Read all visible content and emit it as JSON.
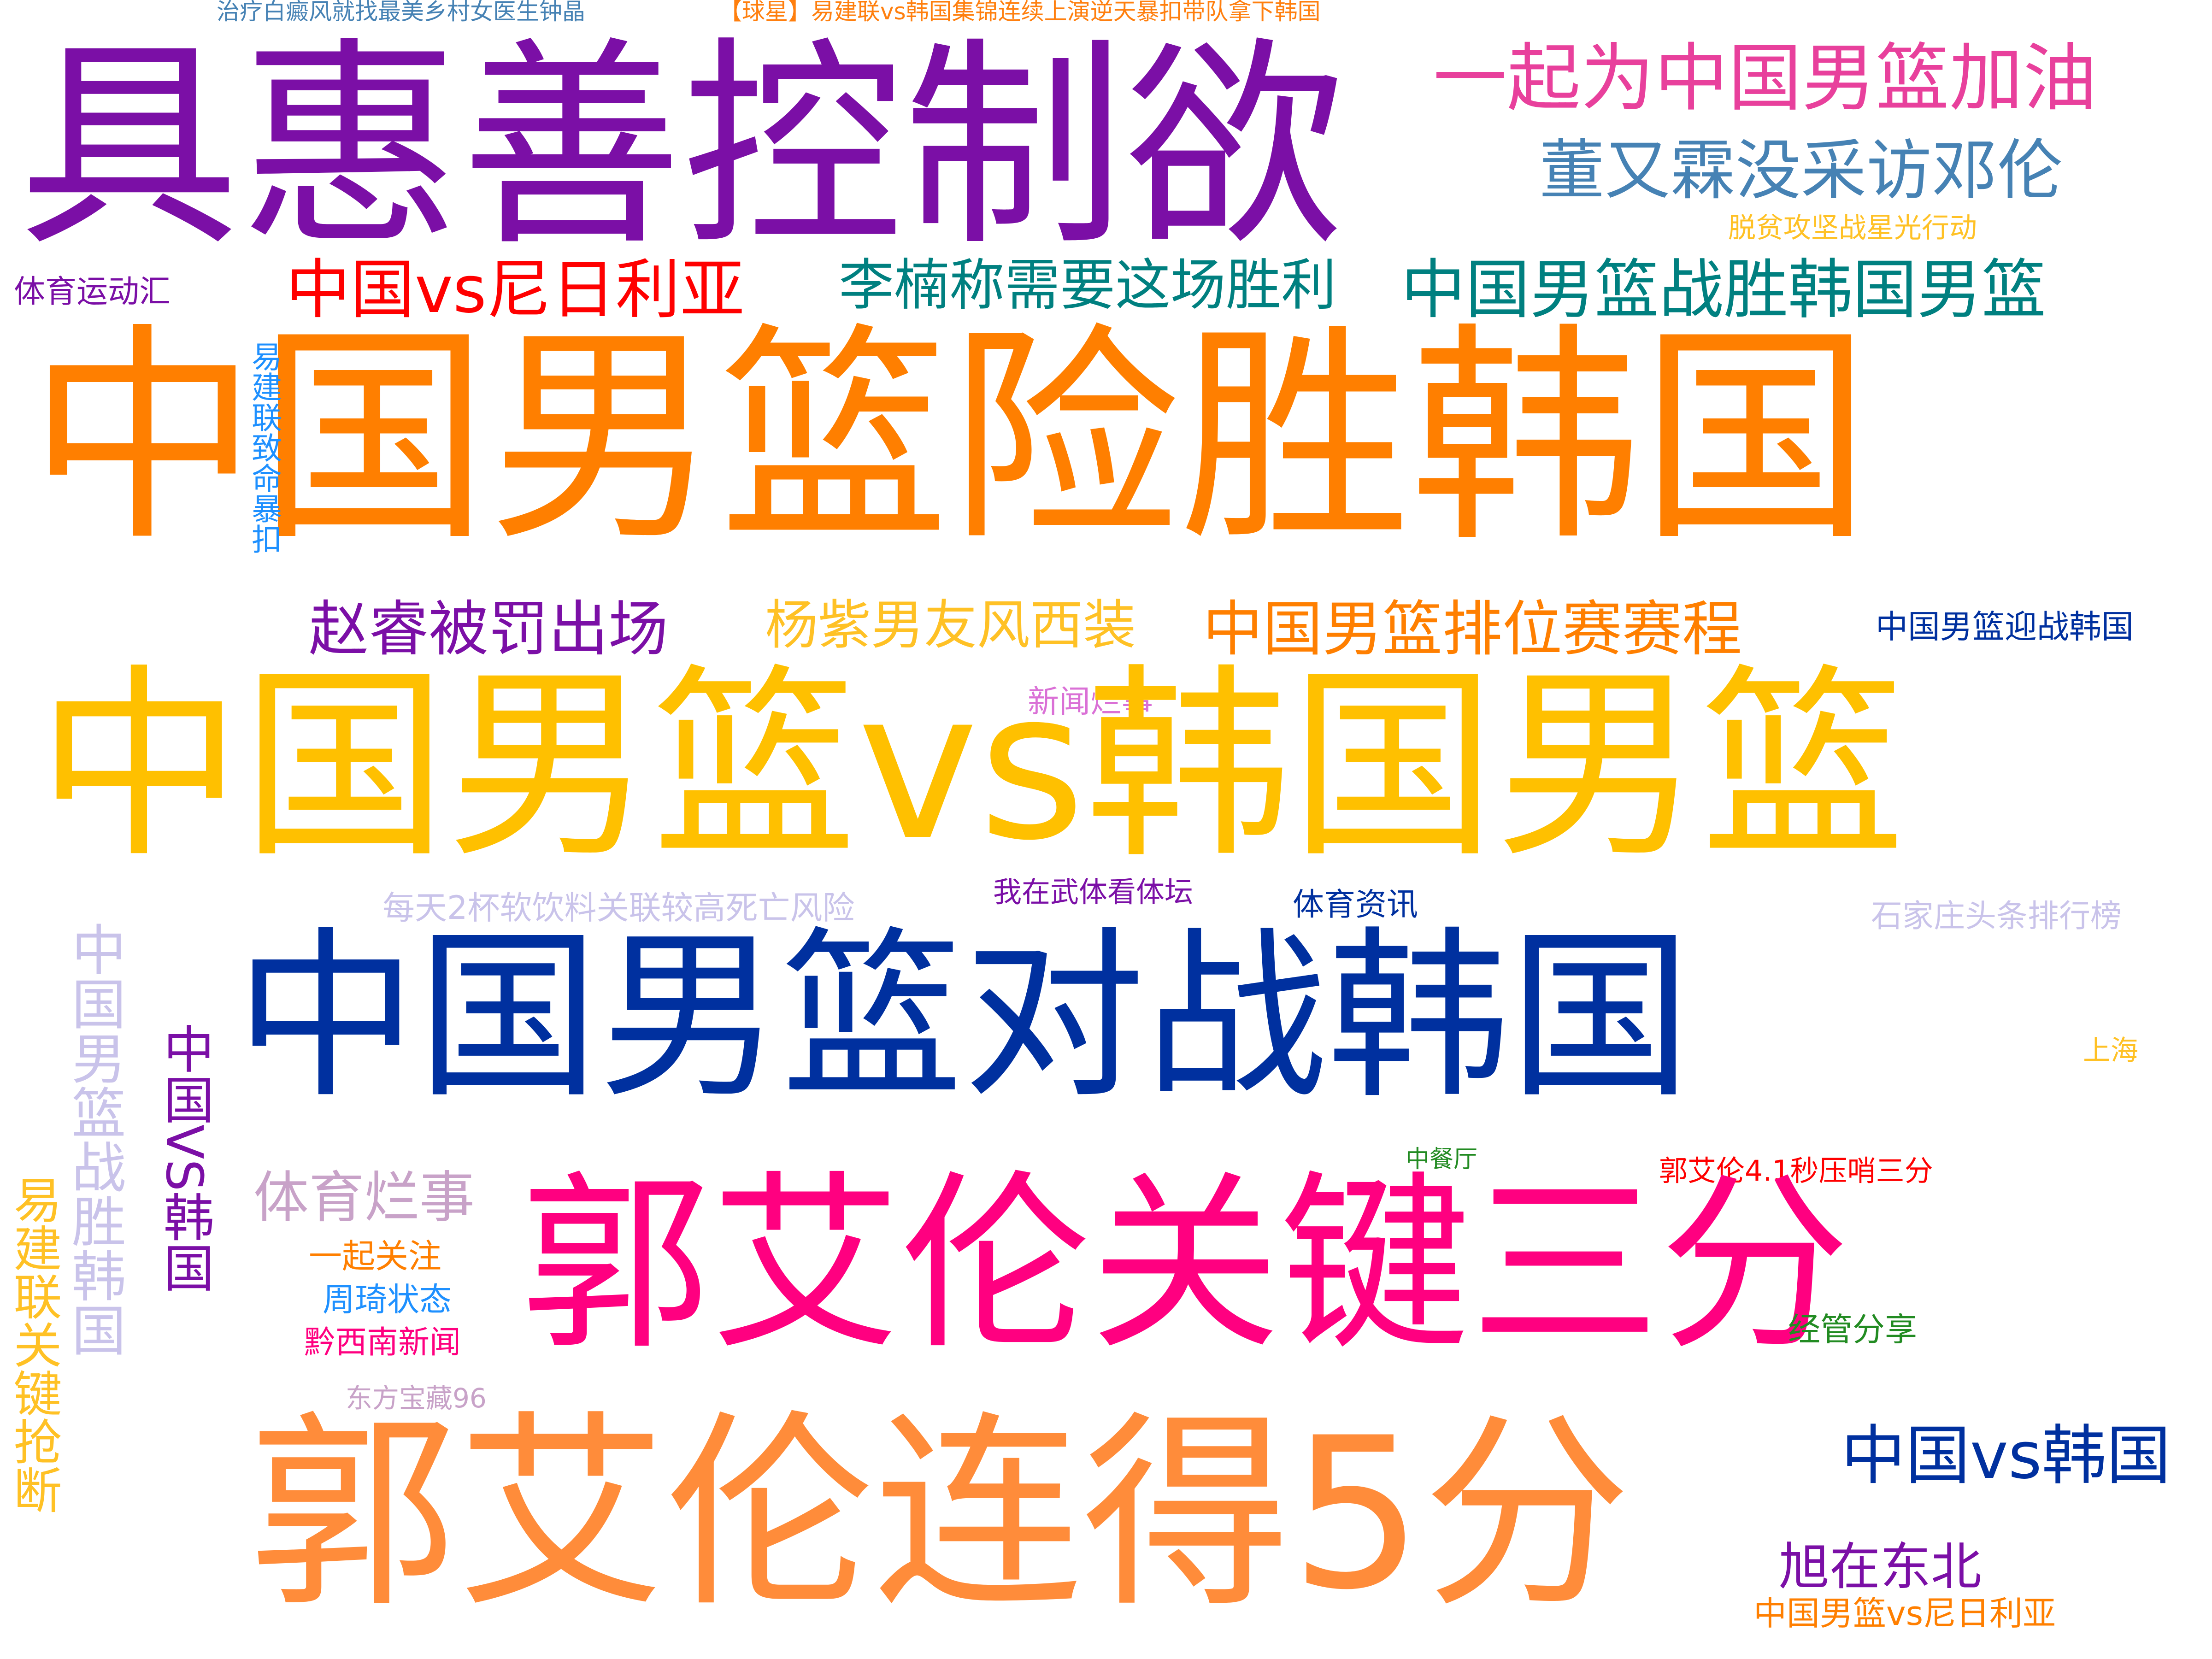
{
  "words": [
    {
      "text": "治疗白癜风就找最美乡村女医生钟晶",
      "color": "#4682b4"
    },
    {
      "text": "【球星】易建联vs韩国集锦连续上演逆天暴扣带队拿下韩国",
      "color": "#ff7f0e"
    },
    {
      "text": "具惠善控制欲",
      "color": "#7b0fa6"
    },
    {
      "text": "一起为中国男篮加油",
      "color": "#e8409c"
    },
    {
      "text": "董又霖没采访邓伦",
      "color": "#4682b4"
    },
    {
      "text": "脱贫攻坚战星光行动",
      "color": "#ffc125"
    },
    {
      "text": "体育运动汇",
      "color": "#7b0fa6"
    },
    {
      "text": "中国vs尼日利亚",
      "color": "#ff0000"
    },
    {
      "text": "李楠称需要这场胜利",
      "color": "#008080"
    },
    {
      "text": "中国男篮战胜韩国男篮",
      "color": "#008080"
    },
    {
      "text": "中国男篮险胜韩国",
      "color": "#ff7f00"
    },
    {
      "text": "易建联致命暴扣",
      "color": "#1e90ff"
    },
    {
      "text": "赵睿被罚出场",
      "color": "#7b0fa6"
    },
    {
      "text": "杨紫男友风西装",
      "color": "#ffc125"
    },
    {
      "text": "中国男篮排位赛赛程",
      "color": "#ff7f00"
    },
    {
      "text": "中国男篮迎战韩国",
      "color": "#00309f"
    },
    {
      "text": "新闻烂事",
      "color": "#da70d6"
    },
    {
      "text": "中国男篮vs韩国男篮",
      "color": "#ffc000"
    },
    {
      "text": "每天2杯软饮料关联较高死亡风险",
      "color": "#c9c3ea"
    },
    {
      "text": "我在武体看体坛",
      "color": "#7b0fa6"
    },
    {
      "text": "体育资讯",
      "color": "#00309f"
    },
    {
      "text": "石家庄头条排行榜",
      "color": "#c9c3ea"
    },
    {
      "text": "中国男篮对战韩国",
      "color": "#00309f"
    },
    {
      "text": "中国男篮战胜韩国",
      "color": "#c9c3ea"
    },
    {
      "text": "中国VS韩国",
      "color": "#7b0fa6"
    },
    {
      "text": "上海",
      "color": "#ffc125"
    },
    {
      "text": "中餐厅",
      "color": "#228b22"
    },
    {
      "text": "易建联关键抢断",
      "color": "#ffc125"
    },
    {
      "text": "郭艾伦4.1秒压哨三分",
      "color": "#ff0000"
    },
    {
      "text": "体育烂事",
      "color": "#c8a2c8"
    },
    {
      "text": "郭艾伦关键三分",
      "color": "#ff0080"
    },
    {
      "text": "一起关注",
      "color": "#ff7f00"
    },
    {
      "text": "周琦状态",
      "color": "#1e90ff"
    },
    {
      "text": "经管分享",
      "color": "#228b22"
    },
    {
      "text": "黔西南新闻",
      "color": "#ff0080"
    },
    {
      "text": "东方宝藏96",
      "color": "#c8a2c8"
    },
    {
      "text": "郭艾伦连得5分",
      "color": "#ff8c3a"
    },
    {
      "text": "中国vs韩国",
      "color": "#00309f"
    },
    {
      "text": "旭在东北",
      "color": "#7b0fa6"
    },
    {
      "text": "中国男篮vs尼日利亚",
      "color": "#ff7f00"
    }
  ]
}
